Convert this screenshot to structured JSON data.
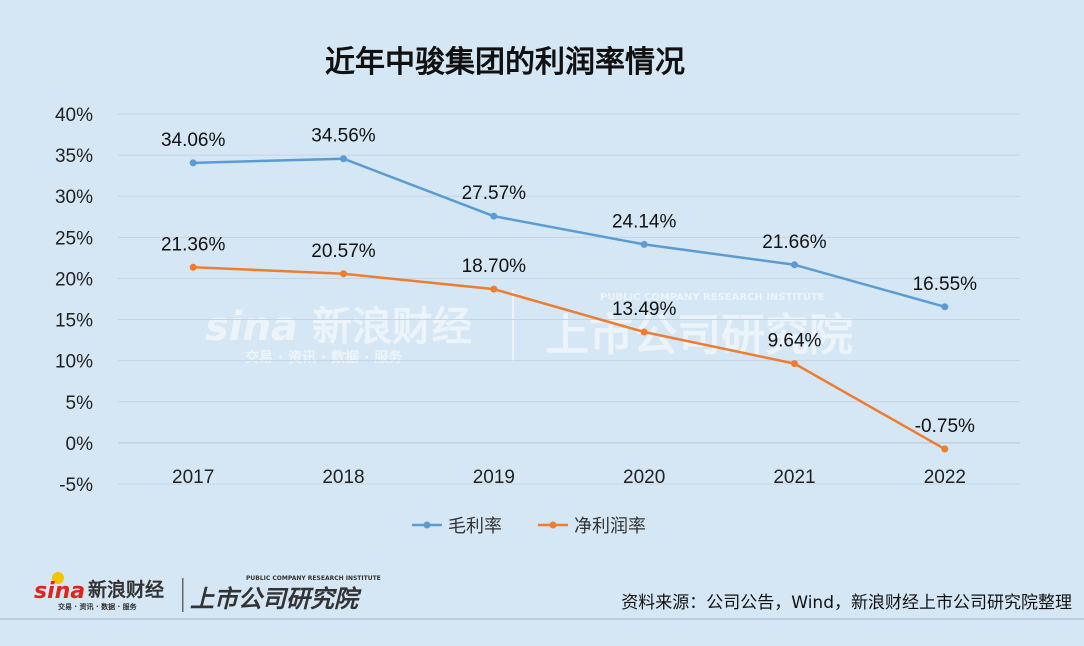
{
  "chart_data": {
    "type": "line",
    "title": "近年中骏集团的利润率情况",
    "categories": [
      "2017",
      "2018",
      "2019",
      "2020",
      "2021",
      "2022"
    ],
    "ylim": [
      -5,
      40
    ],
    "yticks": [
      "-5%",
      "0%",
      "5%",
      "10%",
      "15%",
      "20%",
      "25%",
      "30%",
      "35%",
      "40%"
    ],
    "grid": true,
    "legend_position": "bottom",
    "series": [
      {
        "name": "毛利率",
        "color": "#5b9bd5",
        "values": [
          34.06,
          34.56,
          27.57,
          24.14,
          21.66,
          16.55
        ],
        "labels": [
          "34.06%",
          "34.56%",
          "27.57%",
          "24.14%",
          "21.66%",
          "16.55%"
        ]
      },
      {
        "name": "净利润率",
        "color": "#ed7d31",
        "values": [
          21.36,
          20.57,
          18.7,
          13.49,
          9.64,
          -0.75
        ],
        "labels": [
          "21.36%",
          "20.57%",
          "18.70%",
          "13.49%",
          "9.64%",
          "-0.75%"
        ]
      }
    ]
  },
  "source": "资料来源：公司公告，Wind，新浪财经上市公司研究院整理",
  "watermark": {
    "sina": "sina",
    "brand": "新浪财经",
    "tagline": "交易 · 资讯 · 数据 · 服务",
    "institute": "上市公司研究院",
    "institute_en": "PUBLIC COMPANY RESEARCH INSTITUTE"
  }
}
